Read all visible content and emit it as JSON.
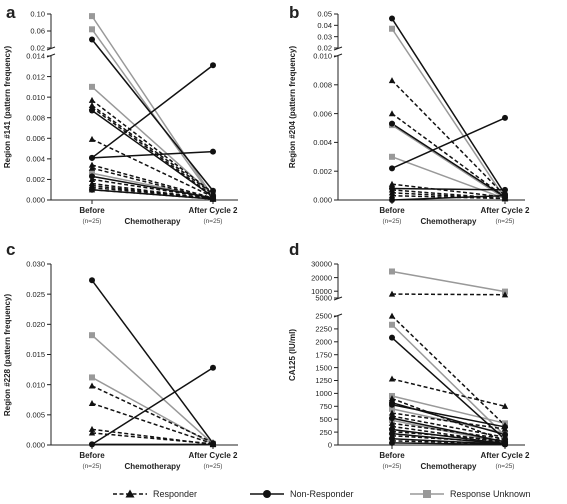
{
  "chart_data": [
    {
      "panel_label": "a",
      "type": "line",
      "categories": [
        "Before",
        "After Cycle 2"
      ],
      "category_n": [
        "(n=25)",
        "(n=25)"
      ],
      "xlabel": "Chemotherapy",
      "ylabel": "Region #141 (pattern frequency)",
      "y_break": {
        "lower_ticks": [
          0.0,
          0.002,
          0.004,
          0.006,
          0.008,
          0.01,
          0.012,
          0.014
        ],
        "lower_tick_labels": [
          "0.000",
          "0.002",
          "0.004",
          "0.006",
          "0.008",
          "0.010",
          "0.012",
          "0.014"
        ],
        "upper_ticks": [
          0.02,
          0.06,
          0.1
        ],
        "upper_tick_labels": [
          "0.02",
          "0.06",
          "0.10"
        ],
        "upper_ylim": [
          0.02,
          0.1
        ]
      },
      "series": [
        {
          "group": "Response Unknown",
          "values": [
            0.095,
            0.0003
          ]
        },
        {
          "group": "Response Unknown",
          "values": [
            0.064,
            0.0002
          ]
        },
        {
          "group": "Response Unknown",
          "values": [
            0.011,
            0.0005
          ]
        },
        {
          "group": "Response Unknown",
          "values": [
            0.0026,
            0.0002
          ]
        },
        {
          "group": "Non-Responder",
          "values": [
            0.04,
            0.0009
          ]
        },
        {
          "group": "Non-Responder",
          "values": [
            0.0087,
            0.0003
          ]
        },
        {
          "group": "Non-Responder",
          "values": [
            0.0041,
            0.0131
          ]
        },
        {
          "group": "Non-Responder",
          "values": [
            0.0041,
            0.0047
          ]
        },
        {
          "group": "Non-Responder",
          "values": [
            0.0023,
            0.0002
          ]
        },
        {
          "group": "Non-Responder",
          "values": [
            0.001,
            0.0001
          ]
        },
        {
          "group": "Responder",
          "values": [
            0.0097,
            0.0007
          ]
        },
        {
          "group": "Responder",
          "values": [
            0.0092,
            0.0006
          ]
        },
        {
          "group": "Responder",
          "values": [
            0.009,
            0.0004
          ]
        },
        {
          "group": "Responder",
          "values": [
            0.0059,
            0.0003
          ]
        },
        {
          "group": "Responder",
          "values": [
            0.0034,
            0.0002
          ]
        },
        {
          "group": "Responder",
          "values": [
            0.0031,
            0.0001
          ]
        },
        {
          "group": "Responder",
          "values": [
            0.002,
            0.0002
          ]
        },
        {
          "group": "Responder",
          "values": [
            0.0016,
            0.0001
          ]
        },
        {
          "group": "Responder",
          "values": [
            0.0014,
            0.0001
          ]
        },
        {
          "group": "Responder",
          "values": [
            0.0012,
            0.0002
          ]
        },
        {
          "group": "Responder",
          "values": [
            0.001,
            0.0001
          ]
        }
      ]
    },
    {
      "panel_label": "b",
      "type": "line",
      "categories": [
        "Before",
        "After Cycle 2"
      ],
      "category_n": [
        "(n=25)",
        "(n=25)"
      ],
      "xlabel": "Chemotherapy",
      "ylabel": "Region #204 (pattern frequency)",
      "y_break": {
        "lower_ticks": [
          0.0,
          0.002,
          0.004,
          0.006,
          0.008,
          0.01
        ],
        "lower_tick_labels": [
          "0.000",
          "0.002",
          "0.004",
          "0.006",
          "0.008",
          "0.010"
        ],
        "upper_ticks": [
          0.02,
          0.03,
          0.04,
          0.05
        ],
        "upper_tick_labels": [
          "0.02",
          "0.03",
          "0.04",
          "0.05"
        ],
        "upper_ylim": [
          0.02,
          0.05
        ]
      },
      "series": [
        {
          "group": "Non-Responder",
          "values": [
            0.046,
            0.0004
          ]
        },
        {
          "group": "Response Unknown",
          "values": [
            0.037,
            0.0001
          ]
        },
        {
          "group": "Responder",
          "values": [
            0.0083,
            0.0003
          ]
        },
        {
          "group": "Responder",
          "values": [
            0.006,
            0.0002
          ]
        },
        {
          "group": "Non-Responder",
          "values": [
            0.0053,
            0.0002
          ]
        },
        {
          "group": "Response Unknown",
          "values": [
            0.0052,
            0.0001
          ]
        },
        {
          "group": "Response Unknown",
          "values": [
            0.003,
            0.0001
          ]
        },
        {
          "group": "Non-Responder",
          "values": [
            0.0022,
            0.0057
          ]
        },
        {
          "group": "Responder",
          "values": [
            0.0011,
            0.0002
          ]
        },
        {
          "group": "Non-Responder",
          "values": [
            0.0008,
            0.0007
          ]
        },
        {
          "group": "Responder",
          "values": [
            0.0007,
            0.0001
          ]
        },
        {
          "group": "Responder",
          "values": [
            0.0005,
            0.0001
          ]
        },
        {
          "group": "Responder",
          "values": [
            0.0003,
            0.0001
          ]
        },
        {
          "group": "Non-Responder",
          "values": [
            0.0,
            0.0003
          ]
        }
      ]
    },
    {
      "panel_label": "c",
      "type": "line",
      "categories": [
        "Before",
        "After Cycle 2"
      ],
      "category_n": [
        "(n=25)",
        "(n=25)"
      ],
      "xlabel": "Chemotherapy",
      "ylabel": "Region #228 (pattern frequency)",
      "ylim": [
        0,
        0.03
      ],
      "yticks": [
        0.0,
        0.005,
        0.01,
        0.015,
        0.02,
        0.025,
        0.03
      ],
      "ytick_labels": [
        "0.000",
        "0.005",
        "0.010",
        "0.015",
        "0.020",
        "0.025",
        "0.030"
      ],
      "series": [
        {
          "group": "Non-Responder",
          "values": [
            0.0273,
            0.0003
          ]
        },
        {
          "group": "Response Unknown",
          "values": [
            0.0182,
            0.0002
          ]
        },
        {
          "group": "Response Unknown",
          "values": [
            0.0112,
            0.0001
          ]
        },
        {
          "group": "Responder",
          "values": [
            0.0098,
            0.0004
          ]
        },
        {
          "group": "Responder",
          "values": [
            0.0069,
            0.0002
          ]
        },
        {
          "group": "Responder",
          "values": [
            0.0026,
            0.0001
          ]
        },
        {
          "group": "Responder",
          "values": [
            0.002,
            0.0002
          ]
        },
        {
          "group": "Non-Responder",
          "values": [
            0.0001,
            0.0128
          ]
        },
        {
          "group": "Non-Responder",
          "values": [
            0.0001,
            0.0001
          ]
        }
      ]
    },
    {
      "panel_label": "d",
      "type": "line",
      "categories": [
        "Before",
        "After Cycle 2"
      ],
      "category_n": [
        "(n=25)",
        "(n=25)"
      ],
      "xlabel": "Chemotherapy",
      "ylabel": "CA125 (IU/ml)",
      "y_break": {
        "lower_ticks": [
          0,
          250,
          500,
          750,
          1000,
          1250,
          1500,
          1750,
          2000,
          2250,
          2500
        ],
        "lower_tick_labels": [
          "0",
          "250",
          "500",
          "750",
          "1000",
          "1250",
          "1500",
          "1750",
          "2000",
          "2250",
          "2500"
        ],
        "upper_ticks": [
          5000,
          10000,
          20000,
          30000
        ],
        "upper_tick_labels": [
          "5000",
          "10000",
          "20000",
          "30000"
        ],
        "upper_ylim": [
          5000,
          30000
        ]
      },
      "series": [
        {
          "group": "Response Unknown",
          "values": [
            24500,
            9700
          ]
        },
        {
          "group": "Responder",
          "values": [
            7900,
            7400
          ]
        },
        {
          "group": "Responder",
          "values": [
            2500,
            380
          ]
        },
        {
          "group": "Response Unknown",
          "values": [
            2330,
            180
          ]
        },
        {
          "group": "Non-Responder",
          "values": [
            2080,
            110
          ]
        },
        {
          "group": "Responder",
          "values": [
            1280,
            750
          ]
        },
        {
          "group": "Response Unknown",
          "values": [
            950,
            420
          ]
        },
        {
          "group": "Responder",
          "values": [
            900,
            80
          ]
        },
        {
          "group": "Non-Responder",
          "values": [
            820,
            200
          ]
        },
        {
          "group": "Non-Responder",
          "values": [
            780,
            350
          ]
        },
        {
          "group": "Response Unknown",
          "values": [
            700,
            230
          ]
        },
        {
          "group": "Responder",
          "values": [
            620,
            310
          ]
        },
        {
          "group": "Responder",
          "values": [
            560,
            150
          ]
        },
        {
          "group": "Non-Responder",
          "values": [
            520,
            60
          ]
        },
        {
          "group": "Response Unknown",
          "values": [
            480,
            40
          ]
        },
        {
          "group": "Responder",
          "values": [
            420,
            120
          ]
        },
        {
          "group": "Responder",
          "values": [
            360,
            50
          ]
        },
        {
          "group": "Non-Responder",
          "values": [
            300,
            30
          ]
        },
        {
          "group": "Responder",
          "values": [
            260,
            90
          ]
        },
        {
          "group": "Non-Responder",
          "values": [
            220,
            20
          ]
        },
        {
          "group": "Responder",
          "values": [
            180,
            45
          ]
        },
        {
          "group": "Non-Responder",
          "values": [
            120,
            15
          ]
        },
        {
          "group": "Responder",
          "values": [
            80,
            25
          ]
        },
        {
          "group": "Non-Responder",
          "values": [
            40,
            10
          ]
        }
      ]
    }
  ],
  "legend": {
    "placement": "bottom",
    "items": [
      {
        "label": "Responder",
        "marker": "triangle",
        "line": "dashed",
        "color": "#111111"
      },
      {
        "label": "Non-Responder",
        "marker": "circle",
        "line": "solid",
        "color": "#111111"
      },
      {
        "label": "Response Unknown",
        "marker": "square",
        "line": "solid",
        "color": "#999999"
      }
    ]
  },
  "style": {
    "Responder": {
      "color": "#111111",
      "marker": "triangle",
      "dash": "4,2.5"
    },
    "Non-Responder": {
      "color": "#111111",
      "marker": "circle",
      "dash": ""
    },
    "Response Unknown": {
      "color": "#999999",
      "marker": "square",
      "dash": ""
    }
  }
}
